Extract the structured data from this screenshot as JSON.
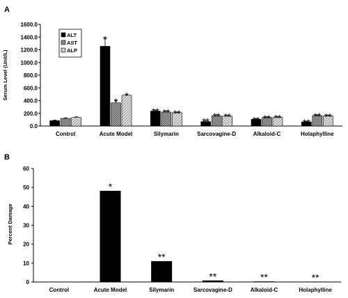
{
  "chart_data": [
    {
      "type": "bar",
      "panel_label": "A",
      "ylabel": "Serum Level (Unit/L)",
      "ylim": [
        0,
        1600
      ],
      "yticks": [
        "0.0",
        "200.0",
        "400.0",
        "600.0",
        "800.0",
        "1000.0",
        "1200.0",
        "1400.0",
        "1600.0"
      ],
      "categories": [
        "Control",
        "Acute Model",
        "Silymarin",
        "Sarcovagine-D",
        "Alkaloid-C",
        "Holaphylline"
      ],
      "legend_position": "top-left",
      "series": [
        {
          "name": "ALT",
          "color": "#000000",
          "pattern": "solid",
          "values": [
            85,
            1255,
            235,
            70,
            105,
            65
          ],
          "errors": [
            10,
            130,
            15,
            25,
            10,
            10
          ],
          "marks": [
            "",
            "*",
            "**",
            "**",
            "**",
            "**"
          ]
        },
        {
          "name": "AST",
          "color": "#7f7f7f",
          "pattern": "dense-hatch",
          "values": [
            120,
            365,
            220,
            160,
            135,
            165
          ],
          "errors": [
            10,
            40,
            15,
            15,
            10,
            10
          ],
          "marks": [
            "",
            "*",
            "**",
            "**",
            "**",
            "**"
          ]
        },
        {
          "name": "ALP",
          "color": "#d0d0d0",
          "pattern": "diagonal-hatch",
          "values": [
            135,
            485,
            210,
            155,
            140,
            160
          ],
          "errors": [
            10,
            15,
            10,
            15,
            10,
            10
          ],
          "marks": [
            "",
            "*",
            "**",
            "**",
            "**",
            "**"
          ]
        }
      ]
    },
    {
      "type": "bar",
      "panel_label": "B",
      "ylabel": "Percent Damage",
      "ylim": [
        0,
        60
      ],
      "yticks": [
        "0",
        "10",
        "20",
        "30",
        "40",
        "50",
        "60"
      ],
      "categories": [
        "Control",
        "Acute Model",
        "Silymarin",
        "Sarcovagine-D",
        "Alkaloid-C",
        "Holaphylline"
      ],
      "series": [
        {
          "color": "#000000",
          "values": [
            0,
            48.2,
            11.0,
            0.8,
            0.3,
            0.2
          ],
          "marks": [
            "",
            "*",
            "**",
            "**",
            "**",
            "**"
          ]
        }
      ]
    }
  ]
}
